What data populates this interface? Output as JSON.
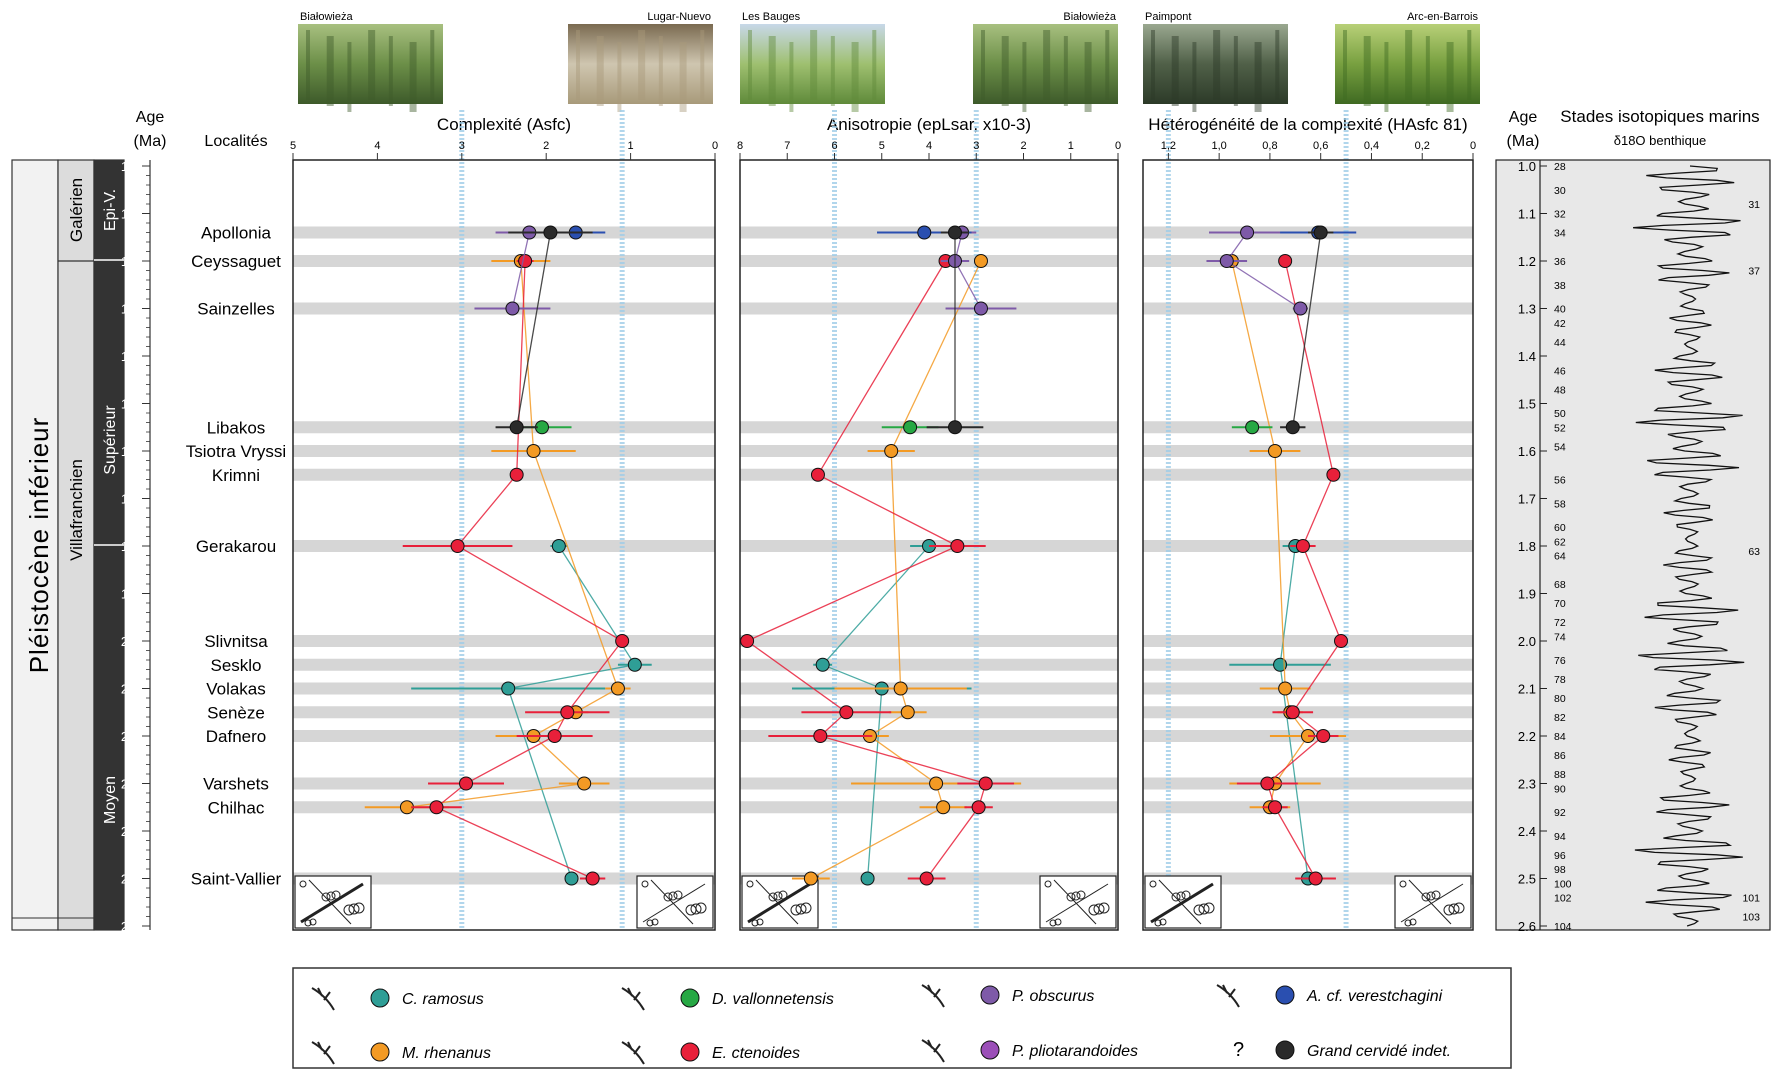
{
  "stratigraphy": {
    "age_title": "Age",
    "age_unit": "(Ma)",
    "localities_title": "Localités",
    "epoch": "Pléistocène inférieur",
    "stages": [
      "Villafranchien",
      "Galérien"
    ],
    "substages": [
      "Epi-V.",
      "Supérieur",
      "Moyen"
    ]
  },
  "age_axis": {
    "ticks": [
      "1.0",
      "1.1",
      "1.2",
      "1.3",
      "1.4",
      "1.5",
      "1.6",
      "1.7",
      "1.8",
      "1.9",
      "2.0",
      "2.1",
      "2.2",
      "2.3",
      "2.4",
      "2.5",
      "2.6"
    ],
    "range": [
      1.0,
      2.6
    ]
  },
  "localities": [
    {
      "name": "Apollonia",
      "age": 1.14
    },
    {
      "name": "Ceyssaguet",
      "age": 1.2
    },
    {
      "name": "Sainzelles",
      "age": 1.3
    },
    {
      "name": "Libakos",
      "age": 1.55
    },
    {
      "name": "Tsiotra Vryssi",
      "age": 1.6
    },
    {
      "name": "Krimni",
      "age": 1.65
    },
    {
      "name": "Gerakarou",
      "age": 1.8
    },
    {
      "name": "Slivnitsa",
      "age": 2.0
    },
    {
      "name": "Sesklo",
      "age": 2.05
    },
    {
      "name": "Volakas",
      "age": 2.1
    },
    {
      "name": "Senèze",
      "age": 2.15
    },
    {
      "name": "Dafnero",
      "age": 2.2
    },
    {
      "name": "Varshets",
      "age": 2.3
    },
    {
      "name": "Chilhac",
      "age": 2.35
    },
    {
      "name": "Saint-Vallier",
      "age": 2.5
    }
  ],
  "photos": [
    {
      "caption": "Białowieża",
      "palette": [
        "#3d5a2a",
        "#6c8f48",
        "#a8c080"
      ]
    },
    {
      "caption": "Lugar-Nuevo",
      "palette": [
        "#a89a7a",
        "#cfc6b0",
        "#7a6a50"
      ]
    },
    {
      "caption": "Les Bauges",
      "palette": [
        "#5f8a3a",
        "#9fc070",
        "#c8d8e8"
      ]
    },
    {
      "caption": "Białowieża",
      "palette": [
        "#3d5a2a",
        "#6c8f48",
        "#a8c080"
      ]
    },
    {
      "caption": "Paimpont",
      "palette": [
        "#2c3a28",
        "#506048",
        "#9aa890"
      ]
    },
    {
      "caption": "Arc-en-Barrois",
      "palette": [
        "#3f6a22",
        "#78a040",
        "#b8d078"
      ]
    }
  ],
  "colors": {
    "c_ramosus": "#2f9e96",
    "m_rhenanus": "#f39a24",
    "d_vallonnetensis": "#27a844",
    "e_ctenoides": "#e8203a",
    "p_obscurus": "#7e5aa8",
    "p_pliotarandoides": "#9b4fb8",
    "a_verestchagini": "#2a4fb0",
    "grand_cervide": "#2a2a2a",
    "band": "#d6d6d6",
    "ref_line": "#9ecde8"
  },
  "species": [
    {
      "key": "c_ramosus",
      "label": "C. ramosus"
    },
    {
      "key": "m_rhenanus",
      "label": "M. rhenanus"
    },
    {
      "key": "d_vallonnetensis",
      "label": "D. vallonnetensis"
    },
    {
      "key": "e_ctenoides",
      "label": "E. ctenoides"
    },
    {
      "key": "p_obscurus",
      "label": "P. obscurus"
    },
    {
      "key": "p_pliotarandoides",
      "label": "P. pliotarandoides"
    },
    {
      "key": "a_verestchagini",
      "label": "A. cf. verestchagini"
    },
    {
      "key": "grand_cervide",
      "label": "Grand cervidé indet.",
      "marker": "?"
    }
  ],
  "isotope": {
    "title": "Stades isotopiques marins",
    "subtitle": "δ18O benthique",
    "age_title": "Age",
    "age_unit": "(Ma)",
    "stage_labels": [
      {
        "n": "28",
        "age": 1.0
      },
      {
        "n": "30",
        "age": 1.05
      },
      {
        "n": "32",
        "age": 1.1
      },
      {
        "n": "34",
        "age": 1.14
      },
      {
        "n": "36",
        "age": 1.2
      },
      {
        "n": "38",
        "age": 1.25
      },
      {
        "n": "40",
        "age": 1.3
      },
      {
        "n": "42",
        "age": 1.33
      },
      {
        "n": "44",
        "age": 1.37
      },
      {
        "n": "46",
        "age": 1.43
      },
      {
        "n": "48",
        "age": 1.47
      },
      {
        "n": "50",
        "age": 1.52
      },
      {
        "n": "52",
        "age": 1.55
      },
      {
        "n": "54",
        "age": 1.59
      },
      {
        "n": "56",
        "age": 1.66
      },
      {
        "n": "58",
        "age": 1.71
      },
      {
        "n": "60",
        "age": 1.76
      },
      {
        "n": "62",
        "age": 1.79
      },
      {
        "n": "64",
        "age": 1.82
      },
      {
        "n": "68",
        "age": 1.88
      },
      {
        "n": "70",
        "age": 1.92
      },
      {
        "n": "72",
        "age": 1.96
      },
      {
        "n": "74",
        "age": 1.99
      },
      {
        "n": "76",
        "age": 2.04
      },
      {
        "n": "78",
        "age": 2.08
      },
      {
        "n": "80",
        "age": 2.12
      },
      {
        "n": "82",
        "age": 2.16
      },
      {
        "n": "84",
        "age": 2.2
      },
      {
        "n": "86",
        "age": 2.24
      },
      {
        "n": "88",
        "age": 2.28
      },
      {
        "n": "90",
        "age": 2.31
      },
      {
        "n": "92",
        "age": 2.36
      },
      {
        "n": "94",
        "age": 2.41
      },
      {
        "n": "96",
        "age": 2.45
      },
      {
        "n": "98",
        "age": 2.48
      },
      {
        "n": "100",
        "age": 2.51
      },
      {
        "n": "102",
        "age": 2.54
      },
      {
        "n": "104",
        "age": 2.6
      }
    ],
    "right_labels": [
      {
        "n": "31",
        "age": 1.08
      },
      {
        "n": "37",
        "age": 1.22
      },
      {
        "n": "63",
        "age": 1.81
      },
      {
        "n": "101",
        "age": 2.54
      },
      {
        "n": "103",
        "age": 2.58
      }
    ]
  },
  "chart_data": [
    {
      "type": "scatter",
      "title": "Complexité (Asfc)",
      "x_ticks": [
        "5",
        "4",
        "3",
        "2",
        "1",
        "0"
      ],
      "xlim": [
        5,
        0
      ],
      "reference_lines": [
        3,
        1.1
      ],
      "series": [
        {
          "name": "C. ramosus",
          "color": "#2f9e96",
          "points": [
            {
              "age": 1.8,
              "x": 1.85,
              "err": 0.1
            },
            {
              "age": 2.05,
              "x": 0.95,
              "err": 0.2
            },
            {
              "age": 2.1,
              "x": 2.45,
              "err": 1.15
            },
            {
              "age": 2.5,
              "x": 1.7,
              "err": 0.08
            }
          ]
        },
        {
          "name": "M. rhenanus",
          "color": "#f39a24",
          "points": [
            {
              "age": 1.2,
              "x": 2.3,
              "err": 0.35
            },
            {
              "age": 1.6,
              "x": 2.15,
              "err": 0.5
            },
            {
              "age": 2.1,
              "x": 1.15,
              "err": 0.15
            },
            {
              "age": 2.15,
              "x": 1.65,
              "err": 0.15
            },
            {
              "age": 2.2,
              "x": 2.15,
              "err": 0.45
            },
            {
              "age": 2.3,
              "x": 1.55,
              "err": 0.3
            },
            {
              "age": 2.35,
              "x": 3.65,
              "err": 0.5
            }
          ]
        },
        {
          "name": "D. vallonnetensis",
          "color": "#27a844",
          "points": [
            {
              "age": 1.55,
              "x": 2.05,
              "err": 0.35
            }
          ]
        },
        {
          "name": "E. ctenoides",
          "color": "#e8203a",
          "points": [
            {
              "age": 1.2,
              "x": 2.25,
              "err": 0.1
            },
            {
              "age": 1.65,
              "x": 2.35,
              "err": 0.05
            },
            {
              "age": 1.8,
              "x": 3.05,
              "err": 0.65
            },
            {
              "age": 2.0,
              "x": 1.1,
              "err": 0.05
            },
            {
              "age": 2.15,
              "x": 1.75,
              "err": 0.5
            },
            {
              "age": 2.2,
              "x": 1.9,
              "err": 0.45
            },
            {
              "age": 2.3,
              "x": 2.95,
              "err": 0.45
            },
            {
              "age": 2.35,
              "x": 3.3,
              "err": 0.3
            },
            {
              "age": 2.5,
              "x": 1.45,
              "err": 0.15
            }
          ]
        },
        {
          "name": "P. obscurus",
          "color": "#7e5aa8",
          "points": [
            {
              "age": 1.14,
              "x": 2.2,
              "err": 0.4
            },
            {
              "age": 1.3,
              "x": 2.4,
              "err": 0.45
            }
          ]
        },
        {
          "name": "A. cf. verestchagini",
          "color": "#2a4fb0",
          "points": [
            {
              "age": 1.14,
              "x": 1.65,
              "err": 0.35
            }
          ]
        },
        {
          "name": "Grand cervidé indet.",
          "color": "#2a2a2a",
          "points": [
            {
              "age": 1.14,
              "x": 1.95,
              "err": 0.5
            },
            {
              "age": 1.55,
              "x": 2.35,
              "err": 0.25
            }
          ]
        }
      ]
    },
    {
      "type": "scatter",
      "title": "Anisotropie (epLsar, x10-3)",
      "x_ticks": [
        "8",
        "7",
        "6",
        "5",
        "4",
        "3",
        "2",
        "1",
        "0"
      ],
      "xlim": [
        8,
        0
      ],
      "reference_lines": [
        6,
        3
      ],
      "series": [
        {
          "name": "C. ramosus",
          "color": "#2f9e96",
          "points": [
            {
              "age": 1.8,
              "x": 4.0,
              "err": 0.4
            },
            {
              "age": 2.05,
              "x": 6.25,
              "err": 0.2
            },
            {
              "age": 2.1,
              "x": 5.0,
              "err": 1.9
            },
            {
              "age": 2.5,
              "x": 5.3,
              "err": 0.1
            }
          ]
        },
        {
          "name": "M. rhenanus",
          "color": "#f39a24",
          "points": [
            {
              "age": 1.2,
              "x": 2.9,
              "err": 0.05
            },
            {
              "age": 1.6,
              "x": 4.8,
              "err": 0.5
            },
            {
              "age": 2.1,
              "x": 4.6,
              "err": 1.4
            },
            {
              "age": 2.15,
              "x": 4.45,
              "err": 0.4
            },
            {
              "age": 2.2,
              "x": 5.25,
              "err": 0.4
            },
            {
              "age": 2.3,
              "x": 3.85,
              "err": 1.8
            },
            {
              "age": 2.35,
              "x": 3.7,
              "err": 0.5
            },
            {
              "age": 2.5,
              "x": 6.5,
              "err": 0.4
            }
          ]
        },
        {
          "name": "D. vallonnetensis",
          "color": "#27a844",
          "points": [
            {
              "age": 1.55,
              "x": 4.4,
              "err": 0.6
            }
          ]
        },
        {
          "name": "E. ctenoides",
          "color": "#e8203a",
          "points": [
            {
              "age": 1.2,
              "x": 3.65,
              "err": 0.1
            },
            {
              "age": 1.65,
              "x": 6.35,
              "err": 0.05
            },
            {
              "age": 1.8,
              "x": 3.4,
              "err": 0.6
            },
            {
              "age": 2.0,
              "x": 7.85,
              "err": 0.1
            },
            {
              "age": 2.15,
              "x": 5.75,
              "err": 0.95
            },
            {
              "age": 2.2,
              "x": 6.3,
              "err": 1.1
            },
            {
              "age": 2.3,
              "x": 2.8,
              "err": 0.6
            },
            {
              "age": 2.35,
              "x": 2.95,
              "err": 0.3
            },
            {
              "age": 2.5,
              "x": 4.05,
              "err": 0.4
            }
          ]
        },
        {
          "name": "P. obscurus",
          "color": "#7e5aa8",
          "points": [
            {
              "age": 1.14,
              "x": 3.3,
              "err": 0.3
            },
            {
              "age": 1.2,
              "x": 3.45,
              "err": 0.3
            },
            {
              "age": 1.3,
              "x": 2.9,
              "err": 0.75
            }
          ]
        },
        {
          "name": "A. cf. verestchagini",
          "color": "#2a4fb0",
          "points": [
            {
              "age": 1.14,
              "x": 4.1,
              "err": 1.0
            }
          ]
        },
        {
          "name": "Grand cervidé indet.",
          "color": "#2a2a2a",
          "points": [
            {
              "age": 1.14,
              "x": 3.45,
              "err": 0.3
            },
            {
              "age": 1.55,
              "x": 3.45,
              "err": 0.6
            }
          ]
        }
      ]
    },
    {
      "type": "scatter",
      "title": "Hétérogénéité de la complexité (HAsfc 81)",
      "x_ticks": [
        "1,2",
        "1,0",
        "0,8",
        "0,6",
        "0,4",
        "0,2",
        "0"
      ],
      "xlim": [
        1.3,
        0
      ],
      "reference_lines": [
        1.2,
        0.5
      ],
      "series": [
        {
          "name": "C. ramosus",
          "color": "#2f9e96",
          "points": [
            {
              "age": 1.8,
              "x": 0.7,
              "err": 0.05
            },
            {
              "age": 2.05,
              "x": 0.76,
              "err": 0.2
            },
            {
              "age": 2.5,
              "x": 0.65,
              "err": 0.05
            }
          ]
        },
        {
          "name": "M. rhenanus",
          "color": "#f39a24",
          "points": [
            {
              "age": 1.2,
              "x": 0.95,
              "err": 0.05
            },
            {
              "age": 1.6,
              "x": 0.78,
              "err": 0.1
            },
            {
              "age": 2.1,
              "x": 0.74,
              "err": 0.1
            },
            {
              "age": 2.15,
              "x": 0.72,
              "err": 0.05
            },
            {
              "age": 2.2,
              "x": 0.65,
              "err": 0.15
            },
            {
              "age": 2.3,
              "x": 0.78,
              "err": 0.18
            },
            {
              "age": 2.35,
              "x": 0.8,
              "err": 0.08
            }
          ]
        },
        {
          "name": "D. vallonnetensis",
          "color": "#27a844",
          "points": [
            {
              "age": 1.55,
              "x": 0.87,
              "err": 0.08
            }
          ]
        },
        {
          "name": "E. ctenoides",
          "color": "#e8203a",
          "points": [
            {
              "age": 1.2,
              "x": 0.74,
              "err": 0.02
            },
            {
              "age": 1.65,
              "x": 0.55,
              "err": 0.02
            },
            {
              "age": 1.8,
              "x": 0.67,
              "err": 0.05
            },
            {
              "age": 2.0,
              "x": 0.52,
              "err": 0.02
            },
            {
              "age": 2.15,
              "x": 0.71,
              "err": 0.08
            },
            {
              "age": 2.2,
              "x": 0.59,
              "err": 0.06
            },
            {
              "age": 2.3,
              "x": 0.81,
              "err": 0.12
            },
            {
              "age": 2.35,
              "x": 0.78,
              "err": 0.05
            },
            {
              "age": 2.5,
              "x": 0.62,
              "err": 0.08
            }
          ]
        },
        {
          "name": "P. obscurus",
          "color": "#7e5aa8",
          "points": [
            {
              "age": 1.14,
              "x": 0.89,
              "err": 0.15
            },
            {
              "age": 1.2,
              "x": 0.97,
              "err": 0.08
            },
            {
              "age": 1.3,
              "x": 0.68,
              "err": 0.03
            }
          ]
        },
        {
          "name": "A. cf. verestchagini",
          "color": "#2a4fb0",
          "points": [
            {
              "age": 1.14,
              "x": 0.61,
              "err": 0.15
            }
          ]
        },
        {
          "name": "Grand cervidé indet.",
          "color": "#2a2a2a",
          "points": [
            {
              "age": 1.14,
              "x": 0.6,
              "err": 0.05
            },
            {
              "age": 1.55,
              "x": 0.71,
              "err": 0.05
            }
          ]
        }
      ]
    }
  ]
}
